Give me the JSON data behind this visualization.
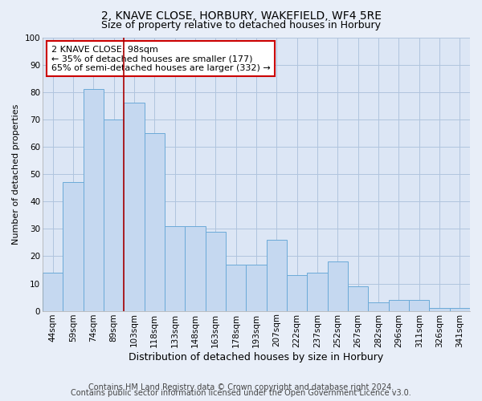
{
  "title1": "2, KNAVE CLOSE, HORBURY, WAKEFIELD, WF4 5RE",
  "title2": "Size of property relative to detached houses in Horbury",
  "xlabel": "Distribution of detached houses by size in Horbury",
  "ylabel": "Number of detached properties",
  "categories": [
    "44sqm",
    "59sqm",
    "74sqm",
    "89sqm",
    "103sqm",
    "118sqm",
    "133sqm",
    "148sqm",
    "163sqm",
    "178sqm",
    "193sqm",
    "207sqm",
    "222sqm",
    "237sqm",
    "252sqm",
    "267sqm",
    "282sqm",
    "296sqm",
    "311sqm",
    "326sqm",
    "341sqm"
  ],
  "values": [
    14,
    47,
    81,
    70,
    76,
    65,
    31,
    31,
    29,
    17,
    17,
    26,
    13,
    14,
    18,
    9,
    3,
    4,
    4,
    1,
    1
  ],
  "bar_color": "#c5d8f0",
  "bar_edge_color": "#6baad8",
  "vline_x_index": 4,
  "vline_color": "#aa0000",
  "annotation_text": "2 KNAVE CLOSE: 98sqm\n← 35% of detached houses are smaller (177)\n65% of semi-detached houses are larger (332) →",
  "annotation_box_color": "#ffffff",
  "annotation_box_edge": "#cc0000",
  "bg_color": "#e8eef8",
  "plot_bg_color": "#dce6f5",
  "grid_color": "#b0c4de",
  "footer1": "Contains HM Land Registry data © Crown copyright and database right 2024.",
  "footer2": "Contains public sector information licensed under the Open Government Licence v3.0.",
  "ylim": [
    0,
    100
  ],
  "title1_fontsize": 10,
  "title2_fontsize": 9,
  "xlabel_fontsize": 9,
  "ylabel_fontsize": 8,
  "tick_fontsize": 7.5,
  "annotation_fontsize": 8,
  "footer_fontsize": 7
}
